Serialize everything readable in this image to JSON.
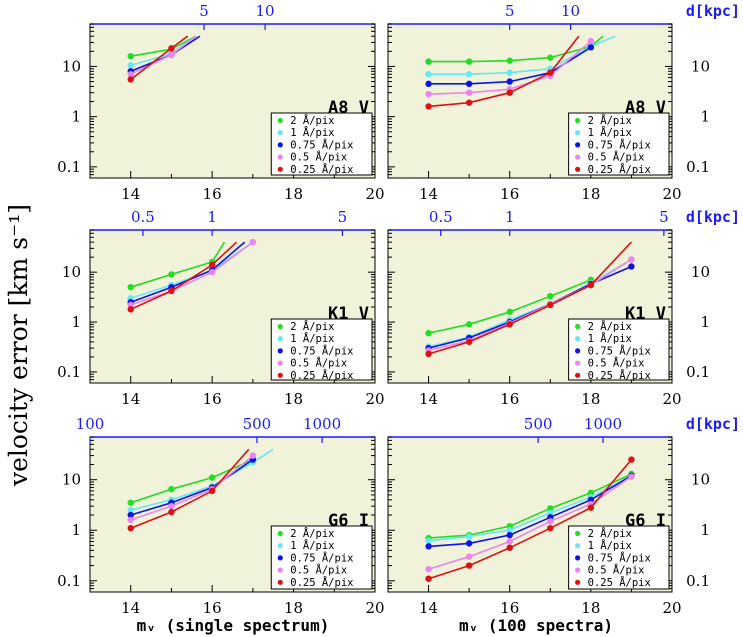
{
  "colors": {
    "panel_bg": "#f0f2d9",
    "frame": "#000000",
    "top_axis": "#1a1aff",
    "series": [
      "#22dd22",
      "#66e8f0",
      "#0a14e6",
      "#ec84ec",
      "#dd1111"
    ]
  },
  "ylabel": "velocity error [km s⁻¹]",
  "xlabels": [
    "mᵥ (single spectrum)",
    "mᵥ (100 spectra)"
  ],
  "dkpc_label": "d[kpc]",
  "chart_data": [
    {
      "type": "line",
      "id": "a8v-single",
      "row": 0,
      "col": 0,
      "star": "A8 V",
      "xlim": [
        13,
        20
      ],
      "ylim": [
        0.06,
        70
      ],
      "yscale": "log",
      "x_ticks": [
        "14",
        "16",
        "18",
        "20"
      ],
      "y_ticks": [
        {
          "v": 0.1,
          "t": "0.1"
        },
        {
          "v": 1,
          "t": "1"
        },
        {
          "v": 10,
          "t": "10"
        }
      ],
      "y_tick_side": "left",
      "top_ticks": [
        {
          "x": 15.8,
          "t": "5"
        },
        {
          "x": 17.3,
          "t": "10"
        }
      ],
      "legend": [
        "2 Å/pix",
        "1 Å/pix",
        "0.75 Å/pix",
        "0.5 Å/pix",
        "0.25 Å/pix"
      ],
      "series": [
        {
          "name": "2 Å/pix",
          "x": [
            14,
            15,
            15.6
          ],
          "y": [
            16,
            22,
            40
          ],
          "dots": 2
        },
        {
          "name": "1 Å/pix",
          "x": [
            14,
            15,
            15.6
          ],
          "y": [
            10.5,
            18,
            40
          ],
          "dots": 2
        },
        {
          "name": "0.75 Å/pix",
          "x": [
            14,
            15,
            15.7
          ],
          "y": [
            8,
            17,
            40
          ],
          "dots": 2
        },
        {
          "name": "0.5 Å/pix",
          "x": [
            14,
            15,
            15.6
          ],
          "y": [
            7,
            17,
            40
          ],
          "dots": 2
        },
        {
          "name": "0.25 Å/pix",
          "x": [
            14,
            15,
            15.4
          ],
          "y": [
            5.5,
            23,
            40
          ],
          "dots": 2
        }
      ]
    },
    {
      "type": "line",
      "id": "a8v-100",
      "row": 0,
      "col": 1,
      "star": "A8 V",
      "xlim": [
        13,
        20
      ],
      "ylim": [
        0.06,
        70
      ],
      "yscale": "log",
      "x_ticks": [
        "14",
        "16",
        "18",
        "20"
      ],
      "y_ticks": [
        {
          "v": 0.1,
          "t": "0.1"
        },
        {
          "v": 1,
          "t": "1"
        },
        {
          "v": 10,
          "t": "10"
        }
      ],
      "y_tick_side": "right",
      "top_ticks": [
        {
          "x": 16,
          "t": "5"
        },
        {
          "x": 17.5,
          "t": "10"
        }
      ],
      "legend": [
        "2 Å/pix",
        "1 Å/pix",
        "0.75 Å/pix",
        "0.5 Å/pix",
        "0.25 Å/pix"
      ],
      "series": [
        {
          "name": "2 Å/pix",
          "x": [
            14,
            15,
            16,
            17,
            18,
            18.3
          ],
          "y": [
            12.5,
            12.5,
            13,
            15,
            25,
            40
          ],
          "dots": 5
        },
        {
          "name": "1 Å/pix",
          "x": [
            14,
            15,
            16,
            17,
            18,
            18.6
          ],
          "y": [
            7,
            7,
            7.5,
            9,
            25,
            40
          ],
          "dots": 5
        },
        {
          "name": "0.75 Å/pix",
          "x": [
            14,
            15,
            16,
            17,
            18
          ],
          "y": [
            4.5,
            4.5,
            5,
            7.5,
            24
          ],
          "dots": 5
        },
        {
          "name": "0.5 Å/pix",
          "x": [
            14,
            15,
            16,
            17,
            18
          ],
          "y": [
            2.8,
            3,
            3.5,
            6.5,
            32
          ],
          "dots": 5
        },
        {
          "name": "0.25 Å/pix",
          "x": [
            14,
            15,
            16,
            17,
            17.7
          ],
          "y": [
            1.6,
            1.9,
            3,
            7.5,
            40
          ],
          "dots": 4
        }
      ]
    },
    {
      "type": "line",
      "id": "k1v-single",
      "row": 1,
      "col": 0,
      "star": "K1 V",
      "xlim": [
        13,
        20
      ],
      "ylim": [
        0.06,
        70
      ],
      "yscale": "log",
      "x_ticks": [
        "14",
        "16",
        "18",
        "20"
      ],
      "y_ticks": [
        {
          "v": 0.1,
          "t": "0.1"
        },
        {
          "v": 1,
          "t": "1"
        },
        {
          "v": 10,
          "t": "10"
        }
      ],
      "y_tick_side": "left",
      "top_ticks": [
        {
          "x": 14.3,
          "t": "0.5"
        },
        {
          "x": 16,
          "t": "1"
        },
        {
          "x": 19.2,
          "t": "5"
        }
      ],
      "legend": [
        "2 Å/pix",
        "1 Å/pix",
        "0.75 Å/pix",
        "0.5 Å/pix",
        "0.25 Å/pix"
      ],
      "series": [
        {
          "name": "2 Å/pix",
          "x": [
            14,
            15,
            16,
            16.3
          ],
          "y": [
            5,
            9,
            16,
            40
          ],
          "dots": 3
        },
        {
          "name": "1 Å/pix",
          "x": [
            14,
            15,
            16,
            17
          ],
          "y": [
            3,
            5.5,
            11,
            40
          ],
          "dots": 4
        },
        {
          "name": "0.75 Å/pix",
          "x": [
            14,
            15,
            16,
            16.8
          ],
          "y": [
            2.5,
            5,
            11,
            40
          ],
          "dots": 3
        },
        {
          "name": "0.5 Å/pix",
          "x": [
            14,
            15,
            16,
            17
          ],
          "y": [
            2.2,
            4.2,
            10,
            40
          ],
          "dots": 4
        },
        {
          "name": "0.25 Å/pix",
          "x": [
            14,
            15,
            16,
            16.6
          ],
          "y": [
            1.8,
            4.2,
            14,
            40
          ],
          "dots": 3
        }
      ]
    },
    {
      "type": "line",
      "id": "k1v-100",
      "row": 1,
      "col": 1,
      "star": "K1 V",
      "xlim": [
        13,
        20
      ],
      "ylim": [
        0.06,
        70
      ],
      "yscale": "log",
      "x_ticks": [
        "14",
        "16",
        "18",
        "20"
      ],
      "y_ticks": [
        {
          "v": 0.1,
          "t": "0.1"
        },
        {
          "v": 1,
          "t": "1"
        },
        {
          "v": 10,
          "t": "10"
        }
      ],
      "y_tick_side": "right",
      "top_ticks": [
        {
          "x": 14.3,
          "t": "0.5"
        },
        {
          "x": 16,
          "t": "1"
        },
        {
          "x": 19.8,
          "t": "5"
        }
      ],
      "legend": [
        "2 Å/pix",
        "1 Å/pix",
        "0.75 Å/pix",
        "0.5 Å/pix",
        "0.25 Å/pix"
      ],
      "series": [
        {
          "name": "2 Å/pix",
          "x": [
            14,
            15,
            16,
            17,
            18
          ],
          "y": [
            0.6,
            0.9,
            1.6,
            3.3,
            7
          ],
          "dots": 5
        },
        {
          "name": "1 Å/pix",
          "x": [
            14,
            15,
            16,
            17,
            18,
            19
          ],
          "y": [
            0.32,
            0.5,
            1.1,
            2.3,
            6,
            18
          ],
          "dots": 6
        },
        {
          "name": "0.75 Å/pix",
          "x": [
            14,
            15,
            16,
            17,
            18,
            19
          ],
          "y": [
            0.3,
            0.48,
            1,
            2.3,
            5.8,
            13
          ],
          "dots": 6
        },
        {
          "name": "0.5 Å/pix",
          "x": [
            14,
            15,
            16,
            17,
            18,
            19
          ],
          "y": [
            0.27,
            0.42,
            0.95,
            2.3,
            5.5,
            18
          ],
          "dots": 6
        },
        {
          "name": "0.25 Å/pix",
          "x": [
            14,
            15,
            16,
            17,
            18,
            19
          ],
          "y": [
            0.23,
            0.4,
            0.9,
            2.2,
            5.5,
            40
          ],
          "dots": 5
        }
      ]
    },
    {
      "type": "line",
      "id": "g6i-single",
      "row": 2,
      "col": 0,
      "star": "G6 I",
      "xlim": [
        13,
        20
      ],
      "ylim": [
        0.06,
        70
      ],
      "yscale": "log",
      "x_ticks": [
        "14",
        "16",
        "18",
        "20"
      ],
      "y_ticks": [
        {
          "v": 0.1,
          "t": "0.1"
        },
        {
          "v": 1,
          "t": "1"
        },
        {
          "v": 10,
          "t": "10"
        }
      ],
      "y_tick_side": "left",
      "top_ticks": [
        {
          "x": 13,
          "t": "100"
        },
        {
          "x": 17.1,
          "t": "500"
        },
        {
          "x": 18.7,
          "t": "1000"
        }
      ],
      "legend": [
        "2 Å/pix",
        "1 Å/pix",
        "0.75 Å/pix",
        "0.5 Å/pix",
        "0.25 Å/pix"
      ],
      "series": [
        {
          "name": "2 Å/pix",
          "x": [
            14,
            15,
            16,
            17
          ],
          "y": [
            3.5,
            6.5,
            11,
            25
          ],
          "dots": 4
        },
        {
          "name": "1 Å/pix",
          "x": [
            14,
            15,
            16,
            17,
            17.5
          ],
          "y": [
            2.5,
            4,
            7.5,
            22,
            40
          ],
          "dots": 4
        },
        {
          "name": "0.75 Å/pix",
          "x": [
            14,
            15,
            16,
            17
          ],
          "y": [
            2,
            3.5,
            7,
            25
          ],
          "dots": 4
        },
        {
          "name": "0.5 Å/pix",
          "x": [
            14,
            15,
            16,
            17
          ],
          "y": [
            1.6,
            3,
            6.5,
            30
          ],
          "dots": 4
        },
        {
          "name": "0.25 Å/pix",
          "x": [
            14,
            15,
            16,
            16.9
          ],
          "y": [
            1.1,
            2.3,
            6,
            40
          ],
          "dots": 3
        }
      ]
    },
    {
      "type": "line",
      "id": "g6i-100",
      "row": 2,
      "col": 1,
      "star": "G6 I",
      "xlim": [
        13,
        20
      ],
      "ylim": [
        0.06,
        70
      ],
      "yscale": "log",
      "x_ticks": [
        "14",
        "16",
        "18",
        "20"
      ],
      "y_ticks": [
        {
          "v": 0.1,
          "t": "0.1"
        },
        {
          "v": 1,
          "t": "1"
        },
        {
          "v": 10,
          "t": "10"
        }
      ],
      "y_tick_side": "right",
      "top_ticks": [
        {
          "x": 16.7,
          "t": "500"
        },
        {
          "x": 18.3,
          "t": "1000"
        }
      ],
      "legend": [
        "2 Å/pix",
        "1 Å/pix",
        "0.75 Å/pix",
        "0.5 Å/pix",
        "0.25 Å/pix"
      ],
      "series": [
        {
          "name": "2 Å/pix",
          "x": [
            14,
            15,
            16,
            17,
            18,
            19
          ],
          "y": [
            0.7,
            0.8,
            1.2,
            2.7,
            5.5,
            13
          ],
          "dots": 6
        },
        {
          "name": "1 Å/pix",
          "x": [
            14,
            15,
            16,
            17,
            18,
            19
          ],
          "y": [
            0.62,
            0.75,
            1,
            2.2,
            4.5,
            12
          ],
          "dots": 6
        },
        {
          "name": "0.75 Å/pix",
          "x": [
            14,
            15,
            16,
            17,
            18,
            19
          ],
          "y": [
            0.48,
            0.55,
            0.8,
            1.8,
            4,
            12
          ],
          "dots": 6
        },
        {
          "name": "0.5 Å/pix",
          "x": [
            14,
            15,
            16,
            17,
            18,
            19
          ],
          "y": [
            0.17,
            0.3,
            0.6,
            1.5,
            3.3,
            11.5
          ],
          "dots": 6
        },
        {
          "name": "0.25 Å/pix",
          "x": [
            14,
            15,
            16,
            17,
            18,
            19
          ],
          "y": [
            0.11,
            0.2,
            0.45,
            1.1,
            2.8,
            25
          ],
          "dots": 6
        }
      ]
    }
  ]
}
